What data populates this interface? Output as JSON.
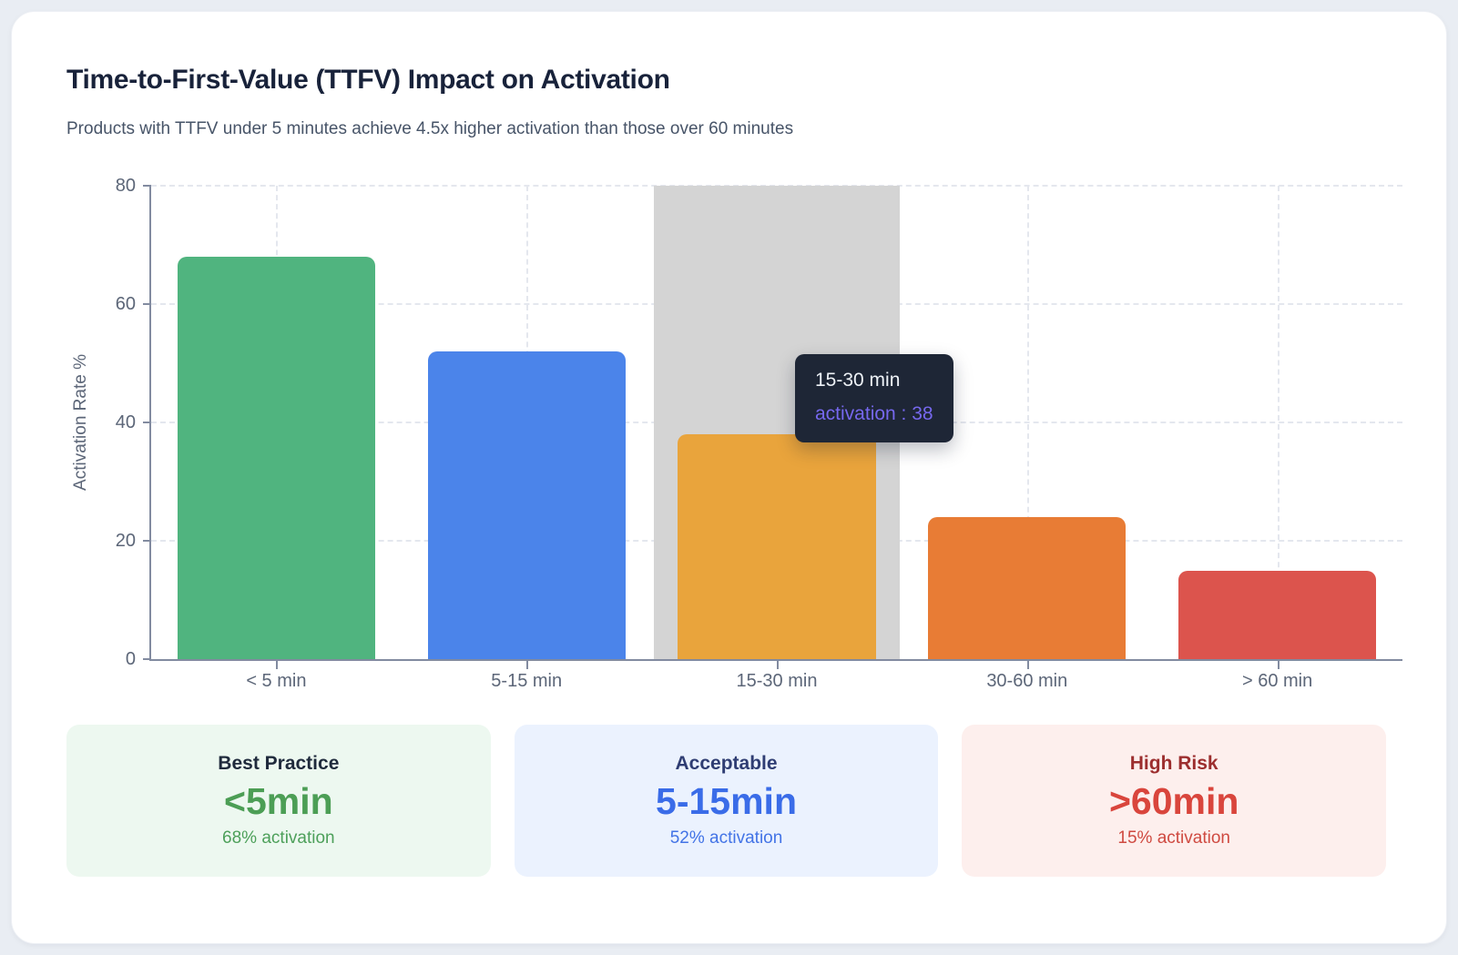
{
  "page": {
    "title": "Time-to-First-Value (TTFV) Impact on Activation",
    "subtitle": "Products with TTFV under 5 minutes achieve 4.5x higher activation than those over 60 minutes"
  },
  "chart_data": {
    "type": "bar",
    "title": "Time-to-First-Value (TTFV) Impact on Activation",
    "categories": [
      "< 5 min",
      "5-15 min",
      "15-30 min",
      "30-60 min",
      "> 60 min"
    ],
    "values": [
      68,
      52,
      38,
      24,
      15
    ],
    "series_name": "activation",
    "xlabel": "",
    "ylabel": "Activation Rate %",
    "ylim": [
      0,
      80
    ],
    "yticks": [
      0,
      20,
      40,
      60,
      80
    ],
    "grid": "dashed horizontal and vertical gridlines",
    "legend": "none",
    "bar_colors": [
      "#50b47f",
      "#4b84ea",
      "#e9a43c",
      "#e87c35",
      "#dc544d"
    ],
    "highlight_index": 2,
    "highlight_band_color": "#d4d4d4"
  },
  "tooltip": {
    "category": "15-30 min",
    "series": "activation",
    "value": 38,
    "line": "activation : 38",
    "bg_color": "#1e2636",
    "value_color": "#7668ee"
  },
  "cards": [
    {
      "label": "Best Practice",
      "value": "<5min",
      "sub": "68% activation",
      "accent": "#4c9e55",
      "bg": "#edf8f0"
    },
    {
      "label": "Acceptable",
      "value": "5-15min",
      "sub": "52% activation",
      "accent": "#3a6ce8",
      "bg": "#ebf2fe"
    },
    {
      "label": "High Risk",
      "value": ">60min",
      "sub": "15% activation",
      "accent": "#d9453c",
      "bg": "#fdefed"
    }
  ]
}
